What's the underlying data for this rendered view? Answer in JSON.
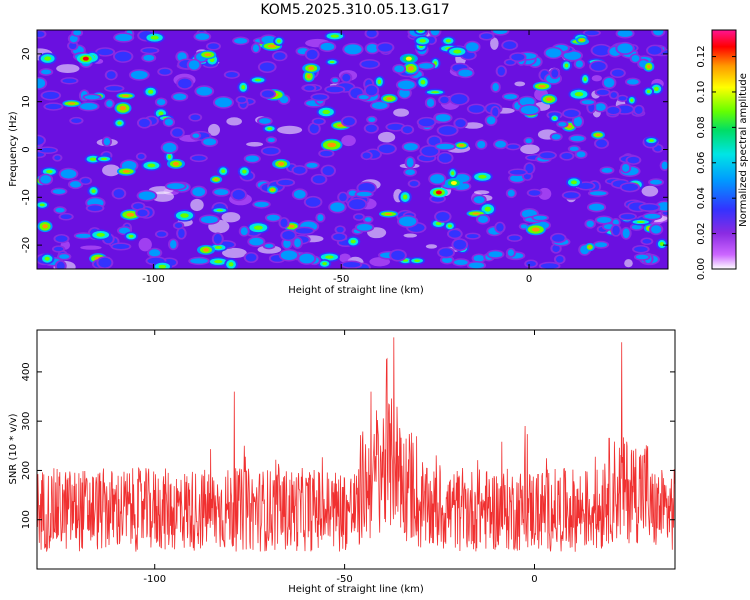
{
  "title": "KOM5.2025.310.05.13.G17",
  "chart_data": [
    {
      "type": "heatmap",
      "xlabel": "Height of straight line (km)",
      "ylabel": "Frequency (Hz)",
      "xlim": [
        -131,
        37
      ],
      "ylim": [
        -25,
        25
      ],
      "xticks": [
        -100,
        -50,
        0
      ],
      "yticks": [
        -20,
        -10,
        0,
        10,
        20
      ],
      "colorbar": {
        "label": "Normalized spectral amplitude",
        "range": [
          0,
          0.135
        ],
        "ticks": [
          "0.00",
          "0.02",
          "0.04",
          "0.06",
          "0.08",
          "0.10",
          "0.12"
        ],
        "ticks_values": [
          0,
          0.02,
          0.04,
          0.06,
          0.08,
          0.1,
          0.12
        ],
        "colors": [
          "#ffffff",
          "#cc66ff",
          "#8a2be2",
          "#3333ff",
          "#0099ff",
          "#00e5e5",
          "#00dd66",
          "#66ff00",
          "#ffff00",
          "#ff9900",
          "#ff0000",
          "#ff1493"
        ]
      },
      "hotspots": [
        {
          "x": -118,
          "y": 19,
          "v": 0.12
        },
        {
          "x": -94,
          "y": -3,
          "v": 0.11
        },
        {
          "x": -66,
          "y": -3,
          "v": 0.11
        },
        {
          "x": -58,
          "y": 17,
          "v": 0.11
        },
        {
          "x": -24,
          "y": -9,
          "v": 0.12
        },
        {
          "x": -20,
          "y": -7,
          "v": 0.1
        },
        {
          "x": -86,
          "y": -21,
          "v": 0.11
        },
        {
          "x": -32,
          "y": 19,
          "v": 0.1
        }
      ]
    },
    {
      "type": "line",
      "xlabel": "Height of straight line (km)",
      "ylabel": "SNR (10 * v/v)",
      "xlim": [
        -131,
        37
      ],
      "ylim": [
        0,
        485
      ],
      "xticks": [
        -100,
        -50,
        0
      ],
      "yticks": [
        100,
        200,
        300,
        400
      ],
      "color": "#f03030",
      "baseline": 120,
      "noise_amplitude": 85,
      "features": [
        {
          "x": -37,
          "peak": 470
        },
        {
          "x": -79,
          "peak": 360
        },
        {
          "x": 23,
          "peak": 460
        },
        {
          "x": -39,
          "peak": 425
        },
        {
          "x": -43,
          "peak": 360
        }
      ]
    }
  ]
}
